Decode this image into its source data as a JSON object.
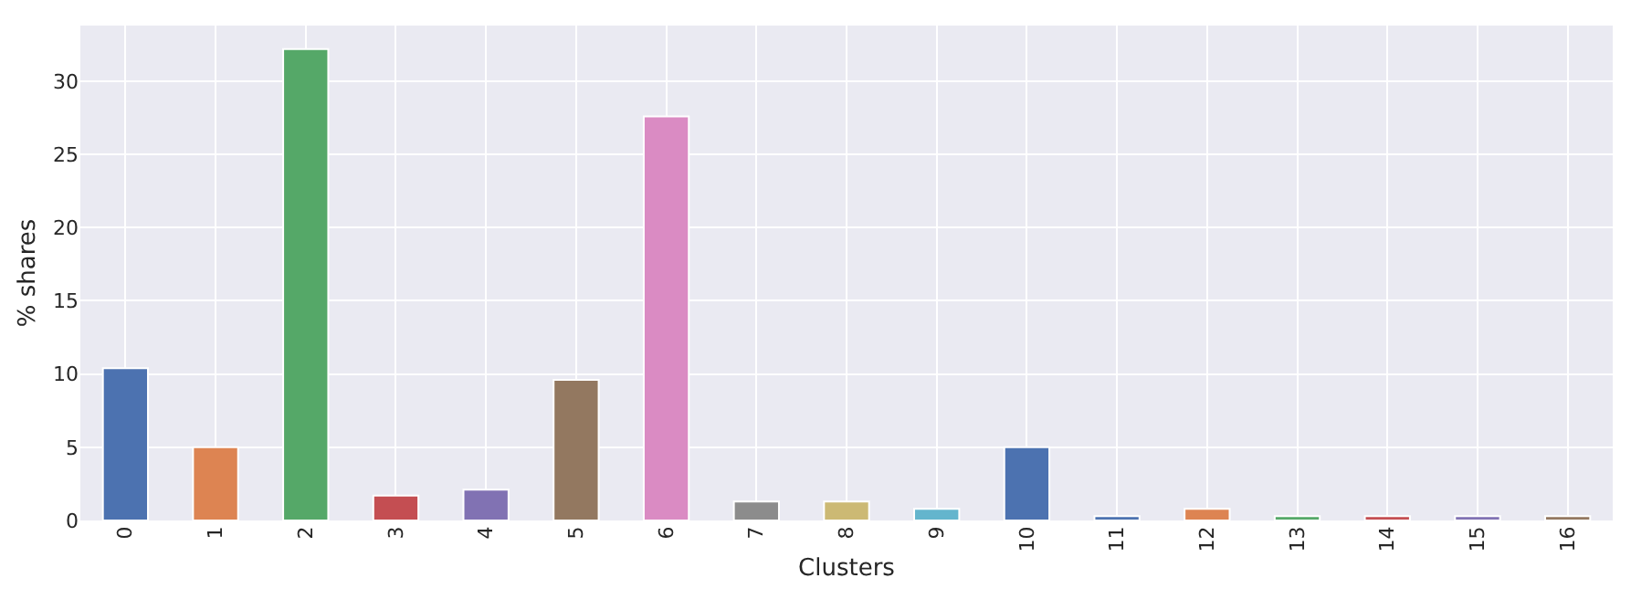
{
  "chart_data": {
    "type": "bar",
    "xlabel": "Clusters",
    "ylabel": "% shares",
    "categories": [
      "0",
      "1",
      "2",
      "3",
      "4",
      "5",
      "6",
      "7",
      "8",
      "9",
      "10",
      "11",
      "12",
      "13",
      "14",
      "15",
      "16"
    ],
    "values": [
      10.4,
      5.0,
      32.2,
      1.7,
      2.1,
      9.6,
      27.6,
      1.3,
      1.3,
      0.8,
      5.0,
      0.3,
      0.8,
      0.3,
      0.3,
      0.3,
      0.3
    ],
    "colors": [
      "#4c72b0",
      "#dd8452",
      "#55a868",
      "#c44e52",
      "#8172b3",
      "#937860",
      "#da8bc3",
      "#8c8c8c",
      "#ccb974",
      "#64b5cd",
      "#4c72b0",
      "#4c72b0",
      "#dd8452",
      "#55a868",
      "#c44e52",
      "#8172b3",
      "#937860"
    ],
    "ylim": [
      0,
      33.8
    ],
    "yticks": [
      0,
      5,
      10,
      15,
      20,
      25,
      30
    ],
    "grid": true
  }
}
